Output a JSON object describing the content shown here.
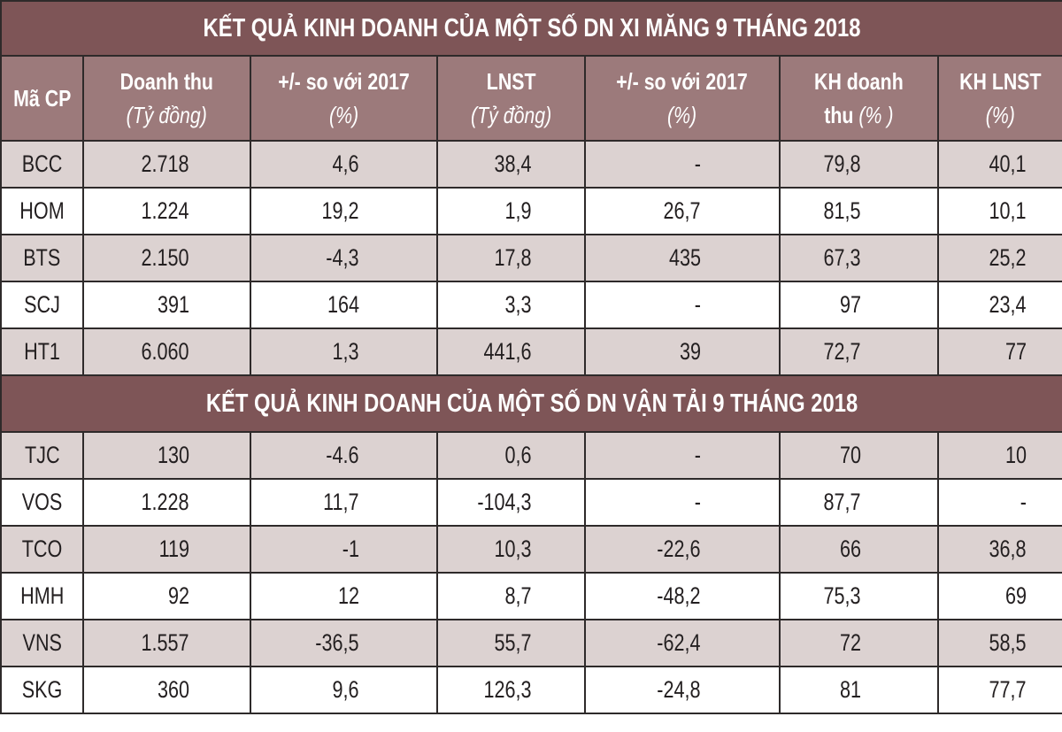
{
  "tables": [
    {
      "title": "KẾT QUẢ KINH DOANH CỦA MỘT SỐ DN XI MĂNG 9 THÁNG 2018",
      "rows": [
        {
          "code": "BCC",
          "revenue": "2.718",
          "rev_change": "4,6",
          "lnst": "38,4",
          "lnst_change": "-",
          "kh_revenue": "79,8",
          "kh_lnst": "40,1"
        },
        {
          "code": "HOM",
          "revenue": "1.224",
          "rev_change": "19,2",
          "lnst": "1,9",
          "lnst_change": "26,7",
          "kh_revenue": "81,5",
          "kh_lnst": "10,1"
        },
        {
          "code": "BTS",
          "revenue": "2.150",
          "rev_change": "-4,3",
          "lnst": "17,8",
          "lnst_change": "435",
          "kh_revenue": "67,3",
          "kh_lnst": "25,2"
        },
        {
          "code": "SCJ",
          "revenue": "391",
          "rev_change": "164",
          "lnst": "3,3",
          "lnst_change": "-",
          "kh_revenue": "97",
          "kh_lnst": "23,4"
        },
        {
          "code": "HT1",
          "revenue": "6.060",
          "rev_change": "1,3",
          "lnst": "441,6",
          "lnst_change": "39",
          "kh_revenue": "72,7",
          "kh_lnst": "77"
        }
      ]
    },
    {
      "title": "KẾT QUẢ KINH DOANH CỦA MỘT SỐ DN VẬN TẢI 9 THÁNG 2018",
      "rows": [
        {
          "code": "TJC",
          "revenue": "130",
          "rev_change": "-4.6",
          "lnst": "0,6",
          "lnst_change": "-",
          "kh_revenue": "70",
          "kh_lnst": "10"
        },
        {
          "code": "VOS",
          "revenue": "1.228",
          "rev_change": "11,7",
          "lnst": "-104,3",
          "lnst_change": "-",
          "kh_revenue": "87,7",
          "kh_lnst": "-"
        },
        {
          "code": "TCO",
          "revenue": "119",
          "rev_change": "-1",
          "lnst": "10,3",
          "lnst_change": "-22,6",
          "kh_revenue": "66",
          "kh_lnst": "36,8"
        },
        {
          "code": "HMH",
          "revenue": "92",
          "rev_change": "12",
          "lnst": "8,7",
          "lnst_change": "-48,2",
          "kh_revenue": "75,3",
          "kh_lnst": "69"
        },
        {
          "code": "VNS",
          "revenue": "1.557",
          "rev_change": "-36,5",
          "lnst": "55,7",
          "lnst_change": "-62,4",
          "kh_revenue": "72",
          "kh_lnst": "58,5"
        },
        {
          "code": "SKG",
          "revenue": "360",
          "rev_change": "9,6",
          "lnst": "126,3",
          "lnst_change": "-24,8",
          "kh_revenue": "81",
          "kh_lnst": "77,7"
        }
      ]
    }
  ],
  "headers": {
    "code": "Mã CP",
    "revenue": {
      "main": "Doanh thu",
      "sub": "(Tỷ đồng)"
    },
    "rev_change": {
      "main": "+/- so với 2017",
      "sub": "(%)"
    },
    "lnst": {
      "main": "LNST",
      "sub": "(Tỷ đồng)"
    },
    "lnst_change": {
      "main": "+/- so với 2017",
      "sub": "(%)"
    },
    "kh_revenue": {
      "main": "KH doanh",
      "main2": "thu",
      "sub": "(% )"
    },
    "kh_lnst": {
      "main": "KH LNST",
      "sub": "(%)"
    }
  },
  "colors": {
    "title_bg": "#7e5557",
    "header_bg": "#9c7a7b",
    "row_shade": "#dcd2d1",
    "row_plain": "#ffffff",
    "border": "#2e2a2a",
    "text": "#231f20"
  }
}
